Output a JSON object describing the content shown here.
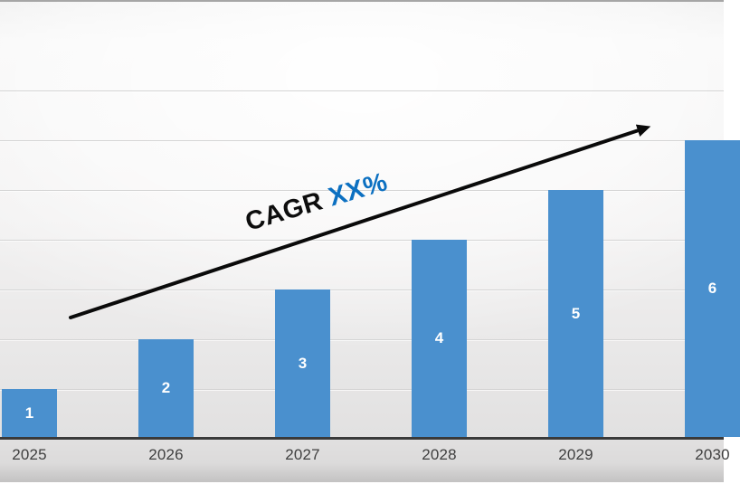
{
  "chart_data": {
    "type": "bar",
    "title": "",
    "xlabel": "",
    "ylabel": "",
    "categories": [
      "2025",
      "2026",
      "2027",
      "2028",
      "2029",
      "2030"
    ],
    "values": [
      1,
      2,
      3,
      4,
      5,
      6
    ],
    "data_labels": [
      "1",
      "2",
      "3",
      "4",
      "5",
      "6"
    ],
    "ylim": [
      0,
      7.3
    ],
    "gridline_values": [
      1,
      2,
      3,
      4,
      5,
      6,
      7
    ],
    "legend": "none",
    "y_axis_labels": "hidden",
    "annotation": {
      "prefix": "CAGR ",
      "highlight": "XX%"
    },
    "trend_arrow": "straight black arrow rising from lower-left to upper-right above bar tops"
  },
  "colors": {
    "bar": "#4a90ce",
    "value_label": "#ffffff",
    "tick_label": "#3f3f3f",
    "axis_line": "#3a3a3a",
    "gridline": "#d4d4d4",
    "annotation_text": "#0d0d0d",
    "annotation_highlight": "#0c70c1",
    "arrow": "#0a0a0a"
  }
}
